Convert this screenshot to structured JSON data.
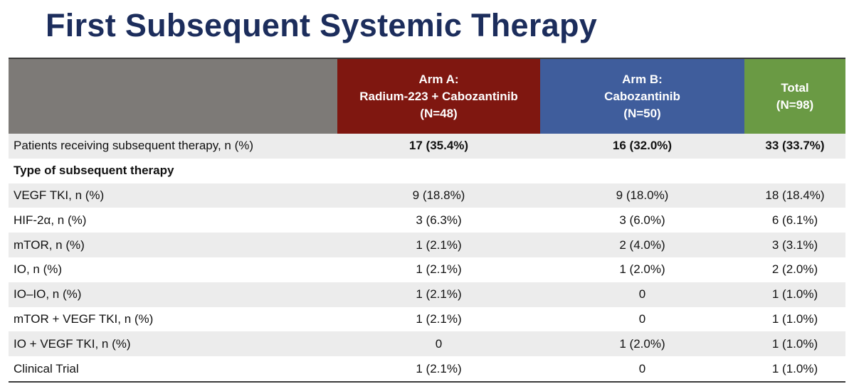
{
  "title": "First Subsequent Systemic Therapy",
  "columns": {
    "arm_a": {
      "line1": "Arm A:",
      "line2": "Radium-223 + Cabozantinib",
      "line3": "(N=48)",
      "color": "#7f1710"
    },
    "arm_b": {
      "line1": "Arm B:",
      "line2": "Cabozantinib",
      "line3": "(N=50)",
      "color": "#3f5d9c"
    },
    "total": {
      "line1": "Total",
      "line2": "(N=98)",
      "color": "#6a9a44"
    }
  },
  "summary_row": {
    "label": "Patients receiving subsequent therapy, n (%)",
    "arm_a": "17 (35.4%)",
    "arm_b": "16 (32.0%)",
    "total": "33 (33.7%)"
  },
  "section_label": "Type of subsequent therapy",
  "rows": [
    {
      "label": "VEGF TKI, n (%)",
      "arm_a": "9 (18.8%)",
      "arm_b": "9 (18.0%)",
      "total": "18 (18.4%)"
    },
    {
      "label": "HIF-2α, n (%)",
      "arm_a": "3 (6.3%)",
      "arm_b": "3 (6.0%)",
      "total": "6 (6.1%)"
    },
    {
      "label": "mTOR, n (%)",
      "arm_a": "1 (2.1%)",
      "arm_b": "2 (4.0%)",
      "total": "3 (3.1%)"
    },
    {
      "label": "IO, n (%)",
      "arm_a": "1 (2.1%)",
      "arm_b": "1 (2.0%)",
      "total": "2 (2.0%)"
    },
    {
      "label": "IO–IO, n (%)",
      "arm_a": "1 (2.1%)",
      "arm_b": "0",
      "total": "1 (1.0%)"
    },
    {
      "label": "mTOR + VEGF TKI, n (%)",
      "arm_a": "1 (2.1%)",
      "arm_b": "0",
      "total": "1 (1.0%)"
    },
    {
      "label": "IO + VEGF TKI, n (%)",
      "arm_a": "0",
      "arm_b": "1 (2.0%)",
      "total": "1 (1.0%)"
    },
    {
      "label": "Clinical Trial",
      "arm_a": "1 (2.1%)",
      "arm_b": "0",
      "total": "1 (1.0%)"
    }
  ]
}
